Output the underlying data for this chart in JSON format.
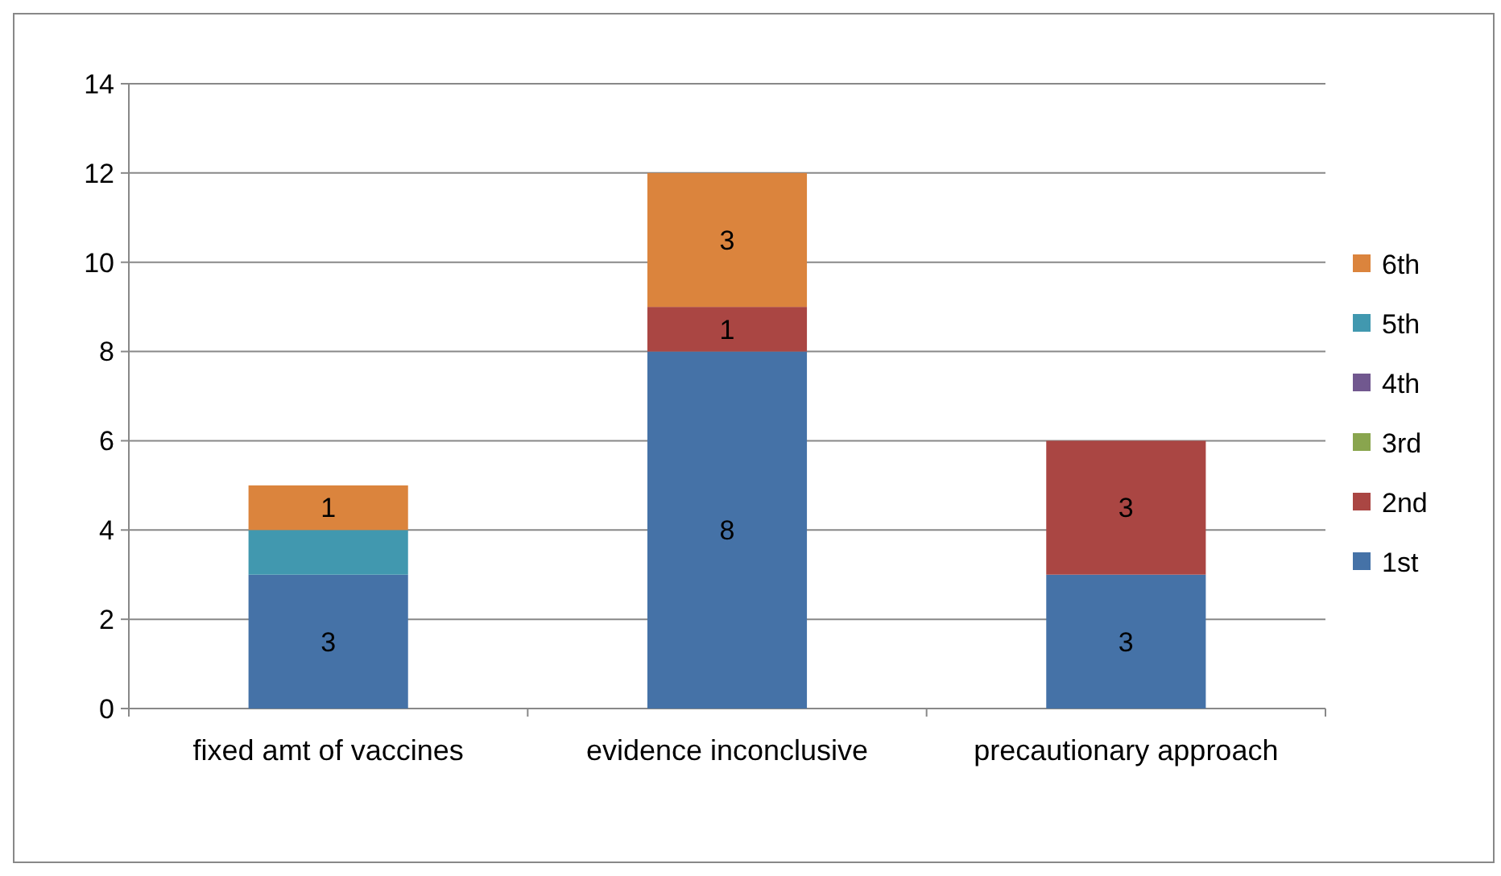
{
  "chart_data": {
    "type": "bar",
    "stacked": true,
    "categories": [
      "fixed amt of vaccines",
      "evidence inconclusive",
      "precautionary approach"
    ],
    "series": [
      {
        "name": "1st",
        "color": "#4572a7",
        "values": [
          3,
          8,
          3
        ],
        "value_labels": [
          "3",
          "8",
          "3"
        ]
      },
      {
        "name": "2nd",
        "color": "#aa4643",
        "values": [
          0,
          1,
          3
        ],
        "value_labels": [
          null,
          "1",
          "3"
        ]
      },
      {
        "name": "3rd",
        "color": "#89a54e",
        "values": [
          0,
          0,
          0
        ]
      },
      {
        "name": "4th",
        "color": "#71588f",
        "values": [
          0,
          0,
          0
        ]
      },
      {
        "name": "5th",
        "color": "#4198af",
        "values": [
          1,
          0,
          0
        ]
      },
      {
        "name": "6th",
        "color": "#db843d",
        "values": [
          1,
          3,
          0
        ],
        "value_labels": [
          "1",
          "3",
          null
        ]
      }
    ],
    "ylim": [
      0,
      14
    ],
    "yticks": [
      0,
      2,
      4,
      6,
      8,
      10,
      12,
      14
    ],
    "grid": "y",
    "legend": "right"
  }
}
